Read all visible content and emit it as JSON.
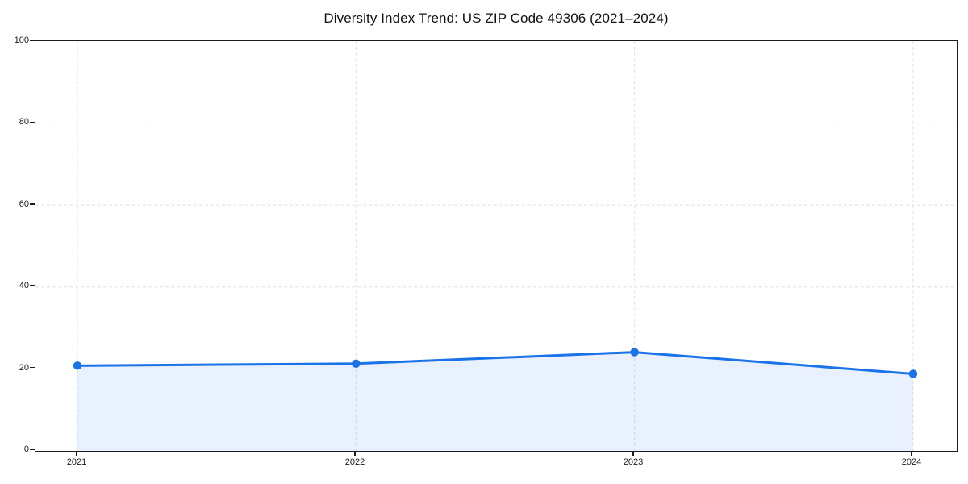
{
  "chart_data": {
    "type": "area",
    "title": "Diversity Index Trend: US ZIP Code 49306 (2021–2024)",
    "categories": [
      "2021",
      "2022",
      "2023",
      "2024"
    ],
    "series": [
      {
        "name": "Diversity Index",
        "values": [
          20.8,
          21.3,
          24.1,
          18.8
        ]
      }
    ],
    "xlabel": "",
    "ylabel": "",
    "ylim": [
      0,
      100
    ],
    "y_ticks": [
      0,
      20,
      40,
      60,
      80,
      100
    ],
    "grid": "dashed-both-axes",
    "legend_position": "none",
    "marker": "circle",
    "colors": {
      "line": "#1a73e8",
      "marker": "#1a73e8",
      "area_fill": "#1a73e8",
      "area_fill_opacity": "0.10",
      "grid": "#e4e4e4",
      "spine": "#1c1c1c",
      "tick_text": "#1a1a1a",
      "title_text": "#111111",
      "background": "#ffffff"
    }
  }
}
